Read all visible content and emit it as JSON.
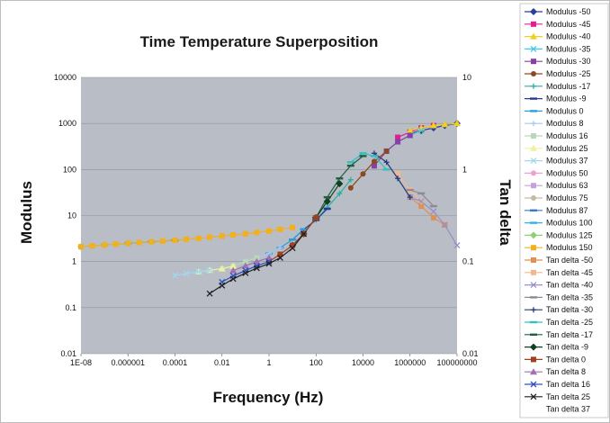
{
  "chart_data": {
    "type": "scatter",
    "title": "Time Temperature Superposition",
    "xlabel": "Frequency (Hz)",
    "ylabel": "Modulus",
    "y2label": "Tan delta",
    "x_scale": "log",
    "y_scale": "log",
    "y2_scale": "log",
    "xlim": [
      1e-08,
      100000000.0
    ],
    "ylim": [
      0.01,
      10000
    ],
    "y2lim": [
      0.01,
      10
    ],
    "x_ticks": [
      "1E-08",
      "0.000001",
      "0.0001",
      "0.01",
      "1",
      "100",
      "10000",
      "1000000",
      "100000000"
    ],
    "y_ticks": [
      "0.01",
      "0.1",
      "1",
      "10",
      "100",
      "1000",
      "10000"
    ],
    "y2_ticks": [
      "0.01",
      "0.1",
      "1",
      "10"
    ],
    "legend_position": "right",
    "plot_background": "#b9bdc6",
    "grid": true,
    "series": [
      {
        "name": "Modulus -50",
        "color": "#2b3f9a",
        "marker": "diamond",
        "axis": "left",
        "x": [
          1000000.0,
          3000000.0,
          10000000.0,
          30000000.0,
          100000000.0
        ],
        "y": [
          600,
          700,
          800,
          900,
          1000
        ]
      },
      {
        "name": "Modulus -45",
        "color": "#e0208f",
        "marker": "square",
        "axis": "left",
        "x": [
          300000.0,
          1000000.0,
          3000000.0,
          10000000.0
        ],
        "y": [
          500,
          650,
          800,
          900
        ]
      },
      {
        "name": "Modulus -40",
        "color": "#f0d020",
        "marker": "triangle",
        "axis": "left",
        "x": [
          1000000.0,
          3000000.0,
          10000000.0,
          30000000.0,
          100000000.0
        ],
        "y": [
          700,
          800,
          900,
          950,
          1000
        ]
      },
      {
        "name": "Modulus -35",
        "color": "#40c8e8",
        "marker": "x",
        "axis": "left",
        "x": [
          100000.0,
          300000.0,
          1000000.0,
          3000000.0
        ],
        "y": [
          250,
          400,
          550,
          700
        ]
      },
      {
        "name": "Modulus -30",
        "color": "#8a3fa8",
        "marker": "square",
        "axis": "left",
        "x": [
          30000.0,
          100000.0,
          300000.0,
          1000000.0
        ],
        "y": [
          120,
          250,
          400,
          550
        ]
      },
      {
        "name": "Modulus -25",
        "color": "#8a4a20",
        "marker": "circle",
        "axis": "left",
        "x": [
          3000.0,
          10000.0,
          30000.0,
          100000.0
        ],
        "y": [
          40,
          80,
          150,
          250
        ]
      },
      {
        "name": "Modulus -17",
        "color": "#2ab0a0",
        "marker": "plus",
        "axis": "left",
        "x": [
          100,
          300,
          1000,
          3000
        ],
        "y": [
          8,
          15,
          30,
          60
        ]
      },
      {
        "name": "Modulus -9",
        "color": "#2a3a9a",
        "marker": "dash",
        "axis": "left",
        "x": [
          10,
          30,
          100,
          300
        ],
        "y": [
          3,
          5,
          8,
          14
        ]
      },
      {
        "name": "Modulus 0",
        "color": "#2aa0e0",
        "marker": "dash",
        "axis": "left",
        "x": [
          1,
          3,
          10,
          30
        ],
        "y": [
          1.5,
          2,
          3,
          5
        ]
      },
      {
        "name": "Modulus 8",
        "color": "#a8c8f0",
        "marker": "plus",
        "axis": "left",
        "x": [
          0.1,
          0.3,
          1,
          3
        ],
        "y": [
          1.0,
          1.2,
          1.5,
          2
        ]
      },
      {
        "name": "Modulus 16",
        "color": "#b8d8b8",
        "marker": "square",
        "axis": "left",
        "x": [
          0.01,
          0.03,
          0.1,
          0.3
        ],
        "y": [
          0.7,
          0.8,
          1.0,
          1.2
        ]
      },
      {
        "name": "Modulus 25",
        "color": "#f0f0a0",
        "marker": "triangle",
        "axis": "left",
        "x": [
          0.001,
          0.003,
          0.01,
          0.03
        ],
        "y": [
          0.6,
          0.65,
          0.7,
          0.8
        ]
      },
      {
        "name": "Modulus 37",
        "color": "#a0d8f0",
        "marker": "x",
        "axis": "left",
        "x": [
          0.0001,
          0.0003,
          0.001,
          0.003
        ],
        "y": [
          0.5,
          0.55,
          0.6,
          0.65
        ]
      },
      {
        "name": "Modulus 50",
        "color": "#f0a0d0",
        "marker": "circle",
        "axis": "left",
        "x": [
          0.001,
          0.01,
          0.1,
          1
        ],
        "y": [
          3.2,
          3.6,
          4.0,
          4.6
        ]
      },
      {
        "name": "Modulus 63",
        "color": "#c8a0e0",
        "marker": "square",
        "axis": "left",
        "x": [
          0.0001,
          0.001,
          0.01,
          0.1
        ],
        "y": [
          2.9,
          3.2,
          3.6,
          4.0
        ]
      },
      {
        "name": "Modulus 75",
        "color": "#c8b8a8",
        "marker": "circle",
        "axis": "left",
        "x": [
          1e-05,
          0.0001,
          0.001
        ],
        "y": [
          2.7,
          2.9,
          3.2
        ]
      },
      {
        "name": "Modulus 87",
        "color": "#3a78c8",
        "marker": "dash",
        "axis": "left",
        "x": [
          1e-06,
          1e-05,
          0.0001
        ],
        "y": [
          2.5,
          2.7,
          2.9
        ]
      },
      {
        "name": "Modulus 100",
        "color": "#30b0f0",
        "marker": "dash",
        "axis": "left",
        "x": [
          1e-07,
          1e-06,
          1e-05
        ],
        "y": [
          2.3,
          2.5,
          2.7
        ]
      },
      {
        "name": "Modulus 125",
        "color": "#90d070",
        "marker": "diamond",
        "axis": "left",
        "x": [
          1e-08,
          1e-07,
          1e-06
        ],
        "y": [
          2.1,
          2.3,
          2.5
        ]
      },
      {
        "name": "Modulus 150",
        "color": "#f0b020",
        "marker": "square",
        "axis": "left",
        "x": [
          1e-08,
          3e-08,
          1e-07,
          3e-07,
          1e-06,
          3e-06,
          1e-05,
          3e-05,
          0.0001,
          0.0003,
          0.001,
          0.003,
          0.01,
          0.03,
          0.1,
          0.3,
          1,
          3,
          10
        ],
        "y": [
          2.1,
          2.2,
          2.3,
          2.4,
          2.5,
          2.6,
          2.7,
          2.8,
          2.9,
          3.05,
          3.2,
          3.4,
          3.6,
          3.8,
          4.0,
          4.3,
          4.6,
          5.0,
          5.5
        ]
      },
      {
        "name": "Tan delta -50",
        "color": "#e09050",
        "marker": "square",
        "axis": "right",
        "x": [
          1000000.0,
          3000000.0,
          10000000.0,
          30000000.0
        ],
        "y": [
          0.5,
          0.4,
          0.3,
          0.25
        ]
      },
      {
        "name": "Tan delta -45",
        "color": "#f0b890",
        "marker": "square",
        "axis": "right",
        "x": [
          300000.0,
          1000000.0,
          3000000.0
        ],
        "y": [
          0.9,
          0.6,
          0.45
        ]
      },
      {
        "name": "Tan delta -40",
        "color": "#9890c8",
        "marker": "x",
        "axis": "right",
        "x": [
          1000000.0,
          3000000.0,
          10000000.0,
          30000000.0,
          100000000.0
        ],
        "y": [
          0.5,
          0.45,
          0.35,
          0.25,
          0.15
        ]
      },
      {
        "name": "Tan delta -35",
        "color": "#8a8a9a",
        "marker": "dash",
        "axis": "right",
        "x": [
          1000000.0,
          3000000.0,
          10000000.0
        ],
        "y": [
          0.6,
          0.55,
          0.4
        ]
      },
      {
        "name": "Tan delta -30",
        "color": "#2a3a7a",
        "marker": "plus",
        "axis": "right",
        "x": [
          30000.0,
          100000.0,
          300000.0,
          1000000.0
        ],
        "y": [
          1.5,
          1.2,
          0.8,
          0.5
        ]
      },
      {
        "name": "Tan delta -25",
        "color": "#30c0c0",
        "marker": "dash",
        "axis": "right",
        "x": [
          3000.0,
          10000.0,
          30000.0,
          100000.0
        ],
        "y": [
          1.2,
          1.5,
          1.4,
          1.0
        ]
      },
      {
        "name": "Tan delta -17",
        "color": "#206040",
        "marker": "dash",
        "axis": "right",
        "x": [
          100,
          300,
          1000,
          3000,
          10000.0
        ],
        "y": [
          0.3,
          0.5,
          0.8,
          1.1,
          1.4
        ]
      },
      {
        "name": "Tan delta -9",
        "color": "#104020",
        "marker": "diamond",
        "axis": "right",
        "x": [
          10,
          30,
          100,
          300,
          1000
        ],
        "y": [
          0.15,
          0.2,
          0.3,
          0.45,
          0.7
        ]
      },
      {
        "name": "Tan delta 0",
        "color": "#a04020",
        "marker": "square",
        "axis": "right",
        "x": [
          1,
          3,
          10,
          30,
          100
        ],
        "y": [
          0.1,
          0.12,
          0.15,
          0.2,
          0.3
        ]
      },
      {
        "name": "Tan delta 8",
        "color": "#a070b0",
        "marker": "triangle",
        "axis": "right",
        "x": [
          0.03,
          0.1,
          0.3,
          1
        ],
        "y": [
          0.08,
          0.09,
          0.1,
          0.11
        ]
      },
      {
        "name": "Tan delta 16",
        "color": "#3050c0",
        "marker": "x",
        "axis": "right",
        "x": [
          0.01,
          0.03,
          0.1,
          0.3,
          1
        ],
        "y": [
          0.06,
          0.07,
          0.08,
          0.09,
          0.1
        ]
      },
      {
        "name": "Tan delta 25",
        "color": "#202020",
        "marker": "x",
        "axis": "right",
        "x": [
          0.003,
          0.01,
          0.03,
          0.1,
          0.3,
          1,
          3,
          10,
          30
        ],
        "y": [
          0.045,
          0.055,
          0.065,
          0.075,
          0.085,
          0.095,
          0.11,
          0.14,
          0.2
        ]
      },
      {
        "name": "Tan delta 37",
        "color": "#f0a020",
        "marker": "none",
        "axis": "right",
        "x": [],
        "y": []
      }
    ]
  }
}
